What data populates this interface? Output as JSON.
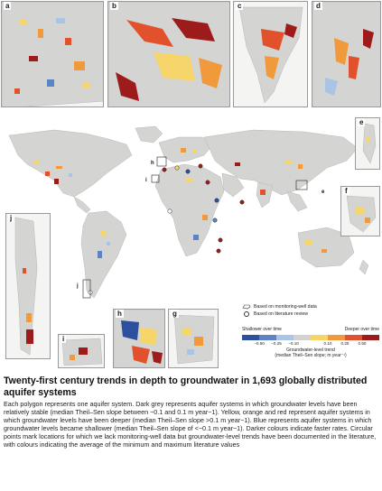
{
  "panels": {
    "a": "a",
    "b": "b",
    "c": "c",
    "d": "d",
    "e": "e",
    "f": "f",
    "g": "g",
    "h": "h",
    "i": "i",
    "j": "j"
  },
  "legend": {
    "monitoring_label": "Based on monitoring-well data",
    "literature_label": "Based on literature review",
    "shallower_label": "Shallower over time",
    "deeper_label": "Deeper over time",
    "ticks": [
      "−0.50",
      "−0.25",
      "−0.10",
      "0.10",
      "0.25",
      "0.50"
    ],
    "title_line1": "Groundwater-level trend",
    "title_line2": "(median Theil–Sen slope; m year⁻¹)",
    "colors": [
      "#2c4f9e",
      "#5b83c6",
      "#a9c4e4",
      "#d2d2d0",
      "#f6d66b",
      "#f09a3c",
      "#e0512c",
      "#9e1b1b"
    ]
  },
  "caption": {
    "title": "Twenty-first century trends in depth to groundwater in 1,693 globally distributed aquifer systems",
    "body": "Each polygon represents one aquifer system. Dark grey represents aquifer systems in which groundwater levels have been relatively stable (median Theil–Sen slope between −0.1 and 0.1 m year−1). Yellow, orange and red represent aquifer systems in which groundwater levels have been deeper (median Theil–Sen slope >0.1 m year−1). Blue represents aquifer systems in which groundwater levels became shallower (median Theil–Sen slope of <−0.1 m year−1). Darker colours indicate faster rates. Circular points mark locations for which we lack monitoring-well data but groundwater-level trends have been documented in the literature, with colours indicating the average of the minimum and maximum literature values"
  }
}
